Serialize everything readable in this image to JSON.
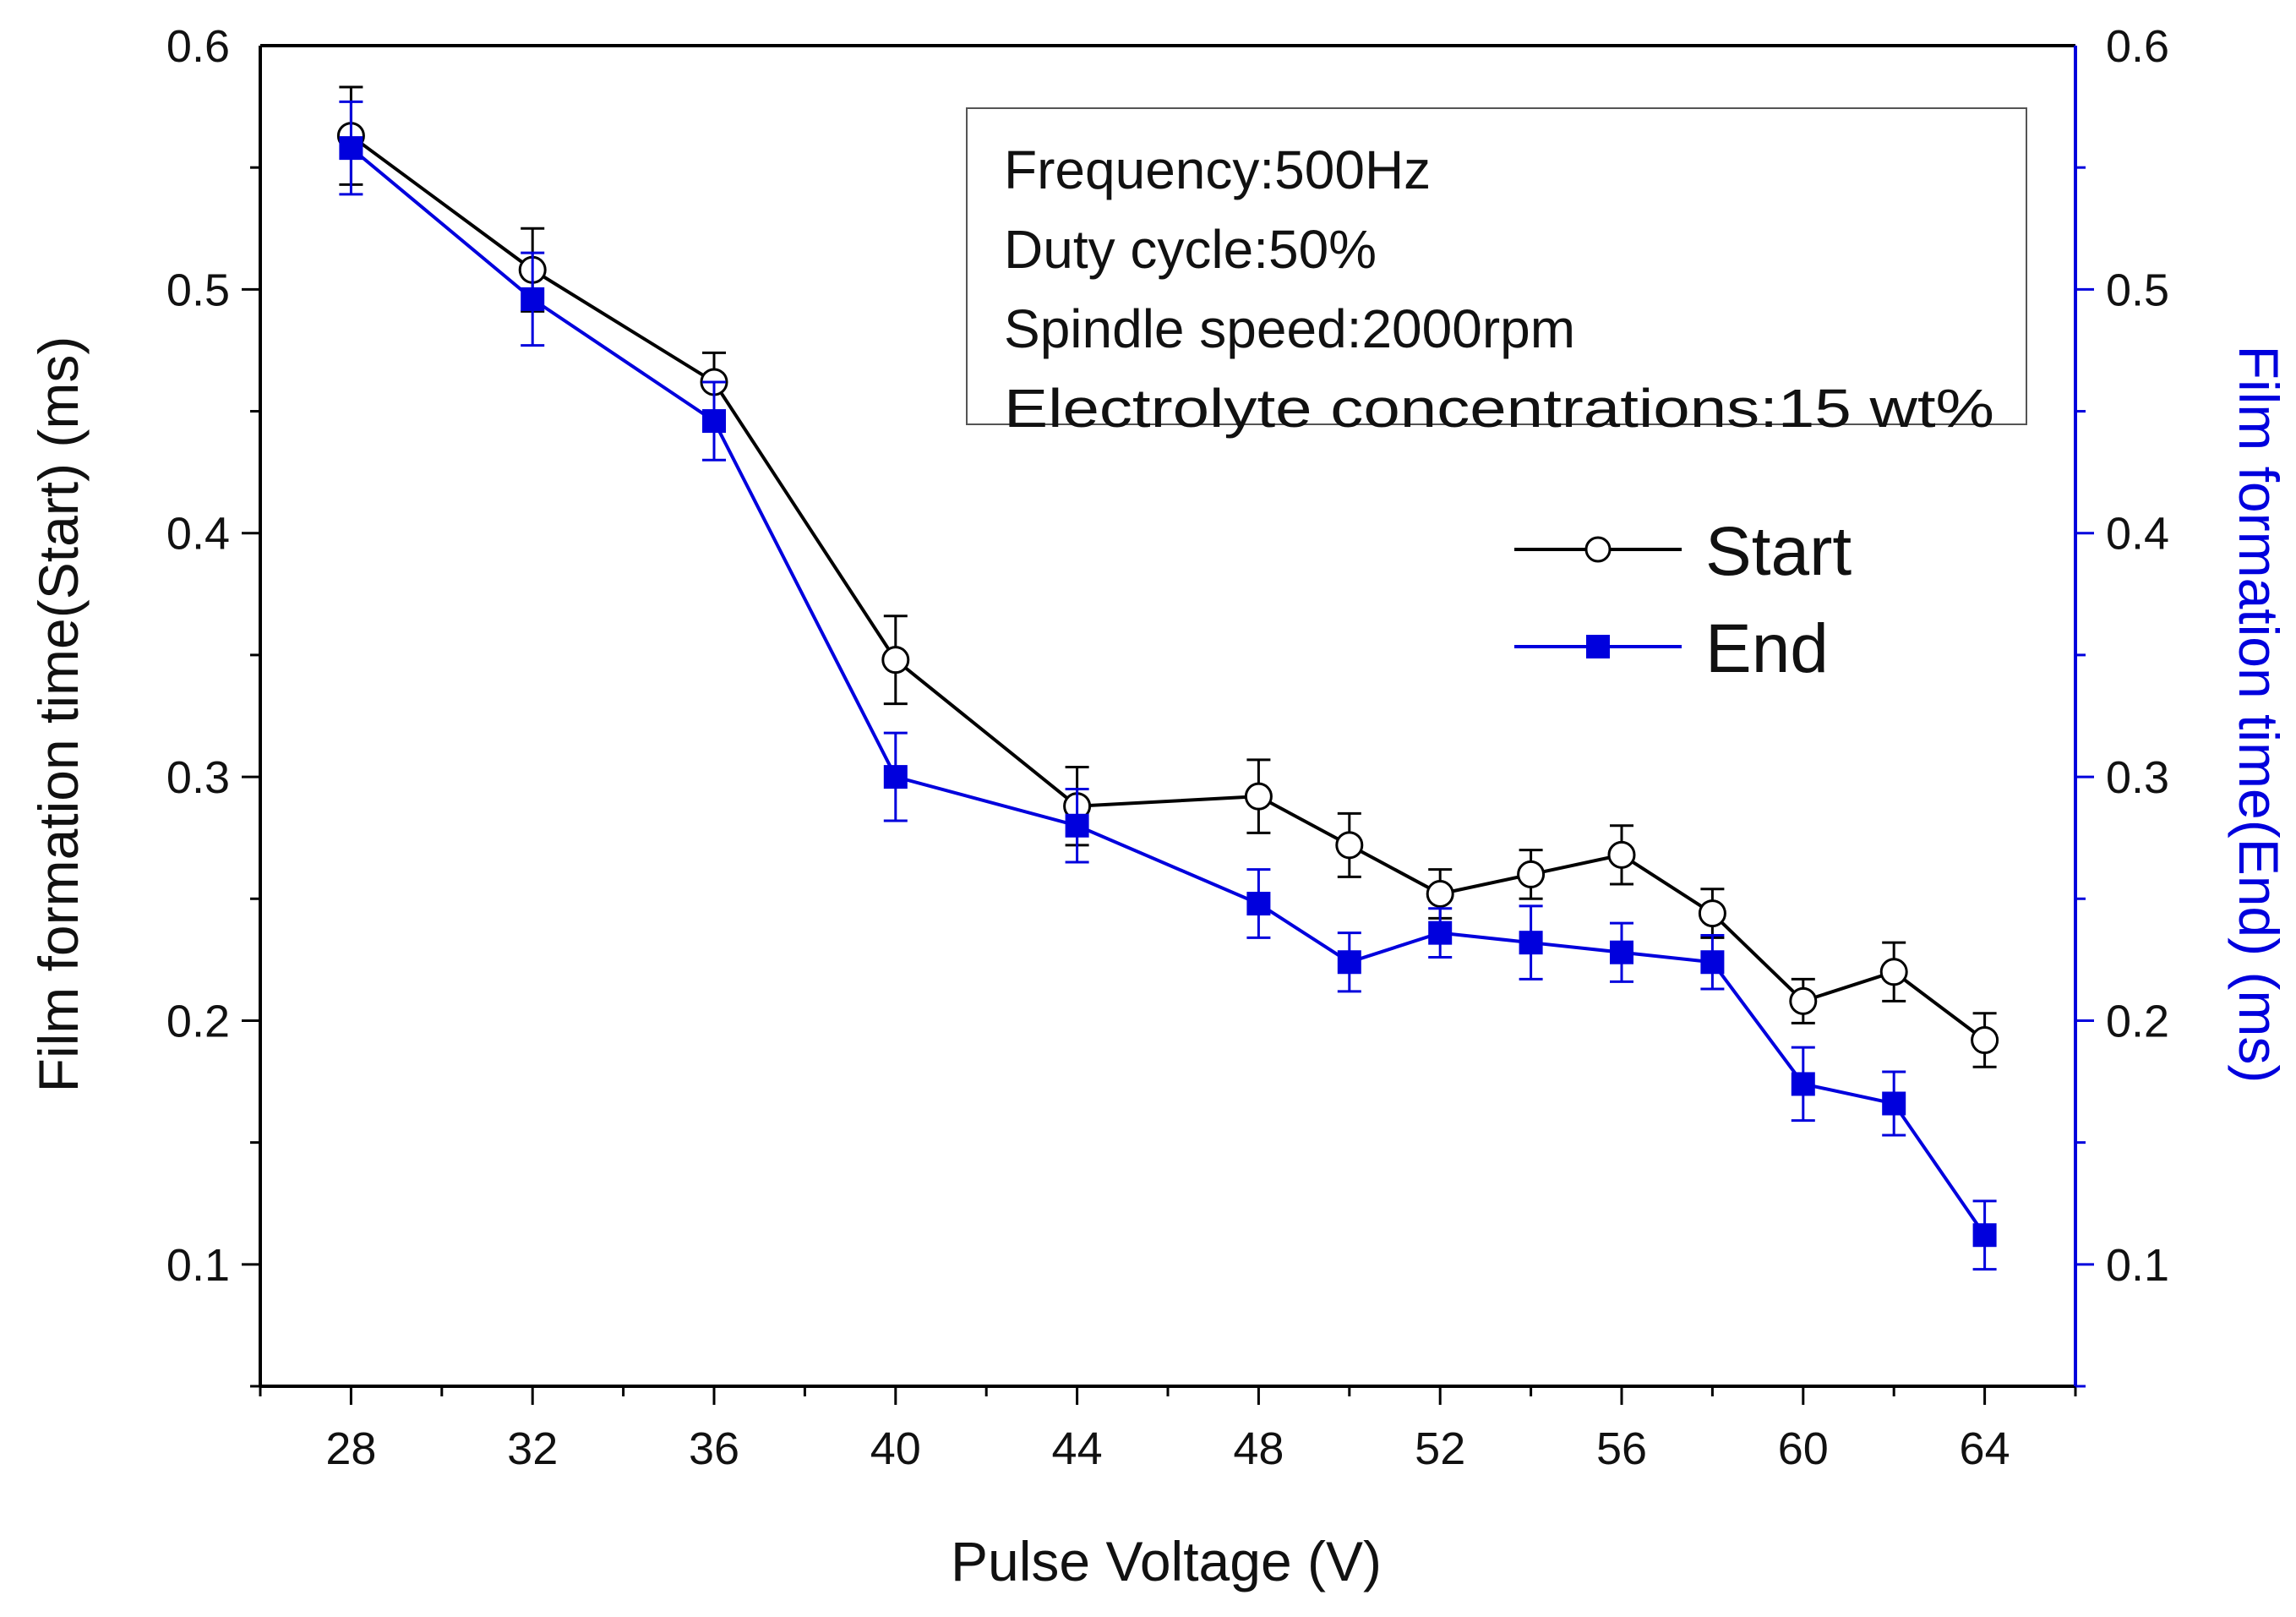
{
  "chart_data": {
    "type": "line",
    "xlabel": "Pulse Voltage (V)",
    "ylabel": "Film formation time(Start) (ms)",
    "y2label": "Film formation time(End) (ms)",
    "xlim": [
      26,
      66
    ],
    "ylim": [
      0.05,
      0.6
    ],
    "y2lim": [
      0.05,
      0.6
    ],
    "x_ticks": [
      28,
      32,
      36,
      40,
      44,
      48,
      52,
      56,
      60,
      64
    ],
    "y_ticks": [
      0.1,
      0.2,
      0.3,
      0.4,
      0.5,
      0.6
    ],
    "y_tick_labels": [
      "0.1",
      "0.2",
      "0.3",
      "0.4",
      "0.5",
      "0.6"
    ],
    "x": [
      28,
      32,
      36,
      40,
      44,
      48,
      50,
      52,
      54,
      56,
      58,
      60,
      62,
      64
    ],
    "series": [
      {
        "name": "Start",
        "axis": "left",
        "color": "#000000",
        "marker": "open-circle",
        "values": [
          0.563,
          0.508,
          0.462,
          0.348,
          0.288,
          0.292,
          0.272,
          0.252,
          0.26,
          0.268,
          0.244,
          0.208,
          0.22,
          0.192
        ],
        "errors": [
          0.02,
          0.017,
          0.012,
          0.018,
          0.016,
          0.015,
          0.013,
          0.01,
          0.01,
          0.012,
          0.01,
          0.009,
          0.012,
          0.011
        ]
      },
      {
        "name": "End",
        "axis": "right",
        "color": "#0000dd",
        "marker": "filled-square",
        "values": [
          0.558,
          0.496,
          0.446,
          0.3,
          0.28,
          0.248,
          0.224,
          0.236,
          0.232,
          0.228,
          0.224,
          0.174,
          0.166,
          0.112
        ],
        "errors": [
          0.019,
          0.019,
          0.016,
          0.018,
          0.015,
          0.014,
          0.012,
          0.01,
          0.015,
          0.012,
          0.011,
          0.015,
          0.013,
          0.014
        ]
      }
    ],
    "annotation": [
      "Frequency:500Hz",
      "Duty cycle:50%",
      "Spindle speed:2000rpm",
      "Electrolyte concentrations:15 wt%"
    ],
    "legend_position": "right-middle"
  }
}
